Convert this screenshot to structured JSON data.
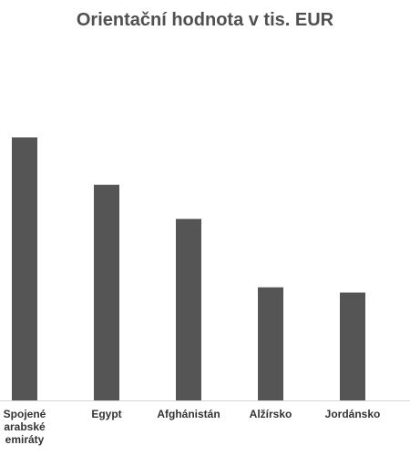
{
  "chart_data": {
    "type": "bar",
    "title": "Orientační hodnota v tis. EUR",
    "categories": [
      [
        "Spojené",
        "arabské",
        "emiráty"
      ],
      [
        "Egypt"
      ],
      [
        "Afghánistán"
      ],
      [
        "Alžírsko"
      ],
      [
        "Jordánsko"
      ]
    ],
    "values": [
      100,
      82,
      69,
      43,
      41
    ],
    "ylim": [
      0,
      110
    ],
    "grid": false,
    "legend": "none",
    "colors": {
      "bar": "#555555",
      "title": "#505050",
      "label": "#333333",
      "axis": "#d4d4d4"
    }
  }
}
